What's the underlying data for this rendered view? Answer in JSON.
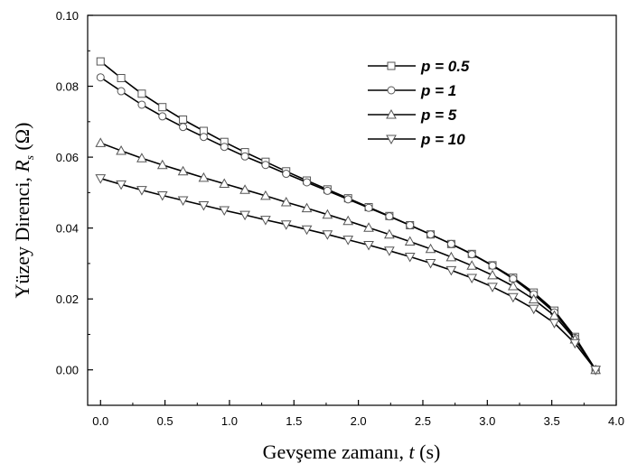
{
  "chart_data": {
    "type": "line",
    "xlabel": "Gevşeme zamanı, t (s)",
    "ylabel": "Yüzey Direnci, Rs (Ω)",
    "xlim": [
      -0.1,
      4.0
    ],
    "ylim": [
      -0.01,
      0.1
    ],
    "x_ticks": [
      "0.0",
      "0.5",
      "1.0",
      "1.5",
      "2.0",
      "2.5",
      "3.0",
      "3.5",
      "4.0"
    ],
    "y_ticks": [
      "0.00",
      "0.02",
      "0.04",
      "0.06",
      "0.08",
      "0.10"
    ],
    "legend_position": "top-right",
    "grid": false,
    "x": [
      0.0,
      0.16,
      0.32,
      0.48,
      0.64,
      0.8,
      0.96,
      1.12,
      1.28,
      1.44,
      1.6,
      1.76,
      1.92,
      2.08,
      2.24,
      2.4,
      2.56,
      2.72,
      2.88,
      3.04,
      3.2,
      3.36,
      3.52,
      3.68,
      3.84
    ],
    "series": [
      {
        "name": "p = 0.5",
        "marker": "square",
        "values": [
          0.087,
          0.0823,
          0.0779,
          0.0741,
          0.0706,
          0.0674,
          0.0643,
          0.0614,
          0.0587,
          0.056,
          0.0534,
          0.0509,
          0.0484,
          0.0459,
          0.0434,
          0.0408,
          0.0382,
          0.0355,
          0.0327,
          0.0295,
          0.026,
          0.0218,
          0.0167,
          0.0093,
          0.0
        ]
      },
      {
        "name": "p = 1",
        "marker": "circle",
        "values": [
          0.0825,
          0.0786,
          0.0748,
          0.0715,
          0.0685,
          0.0657,
          0.0629,
          0.0602,
          0.0578,
          0.0553,
          0.0529,
          0.0505,
          0.0481,
          0.0457,
          0.0433,
          0.0408,
          0.0382,
          0.0355,
          0.0326,
          0.0294,
          0.0257,
          0.0213,
          0.0162,
          0.009,
          0.0
        ]
      },
      {
        "name": "p = 5",
        "marker": "triangle-up",
        "values": [
          0.064,
          0.0618,
          0.0597,
          0.0578,
          0.056,
          0.0542,
          0.0525,
          0.0508,
          0.0491,
          0.0473,
          0.0456,
          0.0438,
          0.042,
          0.0401,
          0.0382,
          0.0362,
          0.0341,
          0.0318,
          0.0294,
          0.0267,
          0.0236,
          0.0199,
          0.0153,
          0.0086,
          0.0
        ]
      },
      {
        "name": "p = 10",
        "marker": "triangle-down",
        "values": [
          0.054,
          0.0523,
          0.0507,
          0.0492,
          0.0478,
          0.0464,
          0.045,
          0.0437,
          0.0423,
          0.041,
          0.0396,
          0.0382,
          0.0367,
          0.0352,
          0.0336,
          0.0319,
          0.0301,
          0.0281,
          0.0259,
          0.0234,
          0.0205,
          0.0172,
          0.0132,
          0.0075,
          0.0
        ]
      }
    ]
  }
}
